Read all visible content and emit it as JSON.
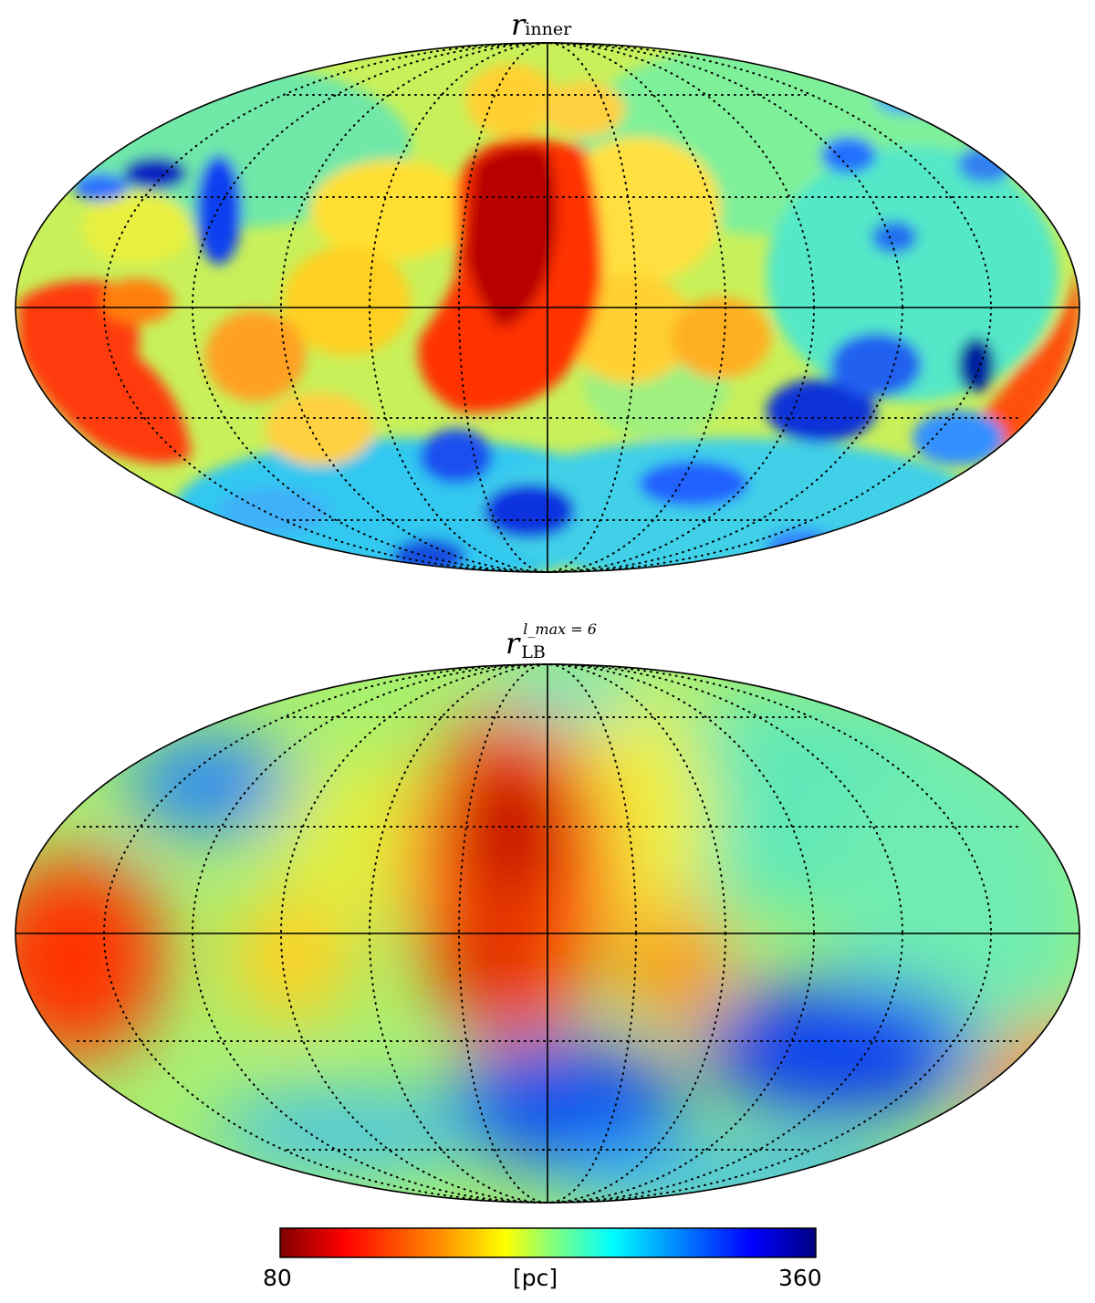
{
  "maps": [
    {
      "name": "top",
      "title_main": "r",
      "title_sub": "inner",
      "projection": "mollweide",
      "graticule_parallels_deg": [
        -60,
        -30,
        0,
        30,
        60
      ],
      "graticule_meridian_step_deg": 30
    },
    {
      "name": "bottom",
      "title_main": "r",
      "title_sub": "LB",
      "title_sup": "l_max = 6",
      "projection": "mollweide",
      "graticule_parallels_deg": [
        -60,
        -30,
        0,
        30,
        60
      ],
      "graticule_meridian_step_deg": 30
    }
  ],
  "colorbar": {
    "min_label": "80",
    "max_label": "360",
    "unit_label": "[pc]",
    "min": 80,
    "max": 360,
    "colormap": "jet-reversed",
    "colors": [
      "#800000",
      "#ff0000",
      "#ff8000",
      "#ffff00",
      "#80ff80",
      "#00ffff",
      "#0080ff",
      "#0000ff",
      "#000080"
    ]
  }
}
